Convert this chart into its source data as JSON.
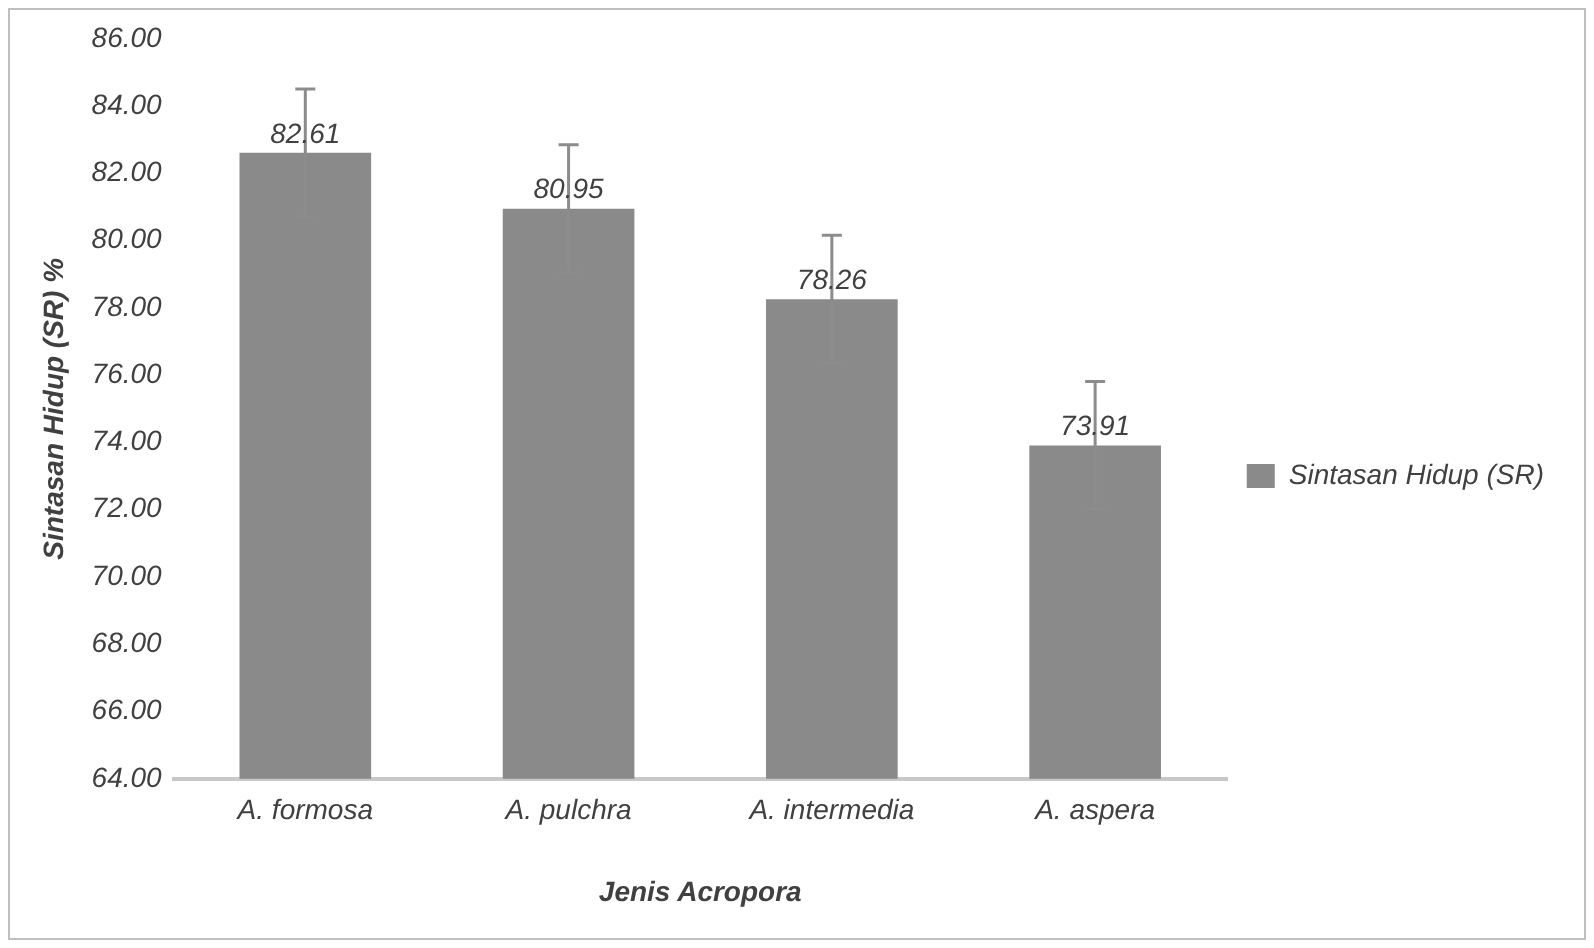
{
  "chart_data": {
    "type": "bar",
    "xlabel": "Jenis Acropora",
    "ylabel": "Sintasan Hidup (SR) %",
    "categories": [
      "A. formosa",
      "A. pulchra",
      "A. intermedia",
      "A. aspera"
    ],
    "series": [
      {
        "name": "Sintasan Hidup (SR)",
        "color": "#8a8a8a",
        "values": [
          82.61,
          80.95,
          78.26,
          73.91
        ],
        "errors": [
          1.9,
          1.9,
          1.9,
          1.9
        ]
      }
    ],
    "ylim": [
      64,
      86
    ],
    "yticks": [
      {
        "value": 64,
        "label": "64.00"
      },
      {
        "value": 66,
        "label": "66.00"
      },
      {
        "value": 68,
        "label": "68.00"
      },
      {
        "value": 70,
        "label": "70.00"
      },
      {
        "value": 72,
        "label": "72.00"
      },
      {
        "value": 74,
        "label": "74.00"
      },
      {
        "value": 76,
        "label": "76.00"
      },
      {
        "value": 78,
        "label": "78.00"
      },
      {
        "value": 80,
        "label": "80.00"
      },
      {
        "value": 82,
        "label": "82.00"
      },
      {
        "value": 84,
        "label": "84.00"
      },
      {
        "value": 86,
        "label": "86.00"
      }
    ],
    "grid": false,
    "legend": "right",
    "data_labels": true
  }
}
